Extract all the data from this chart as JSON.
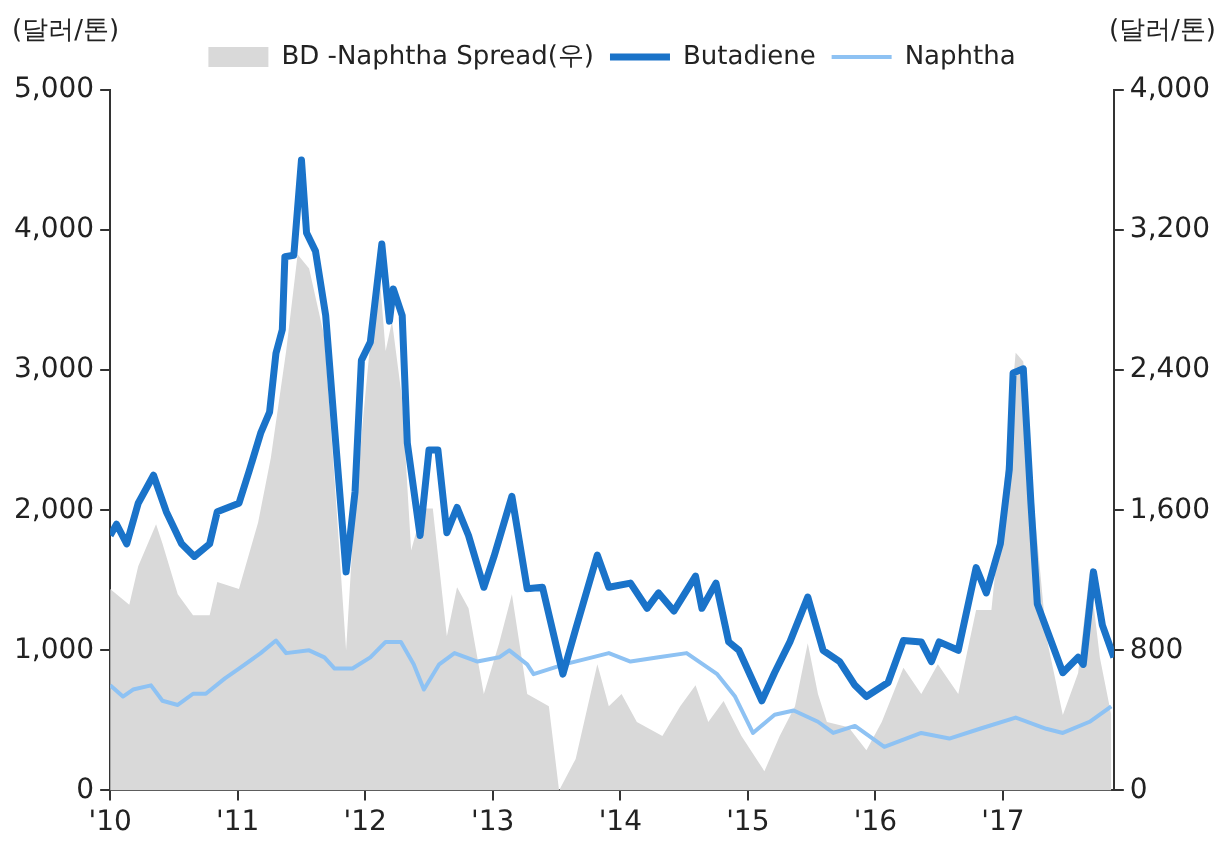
{
  "chart_data": {
    "type": "line",
    "ylabel": "(달러/톤)",
    "y2label": "(달러/톤)",
    "xlim": [
      2010,
      2017.87
    ],
    "xticks": [
      {
        "value": 2010,
        "label": "'10"
      },
      {
        "value": 2011,
        "label": "'11"
      },
      {
        "value": 2012,
        "label": "'12"
      },
      {
        "value": 2013,
        "label": "'13"
      },
      {
        "value": 2014,
        "label": "'14"
      },
      {
        "value": 2015,
        "label": "'15"
      },
      {
        "value": 2016,
        "label": "'16"
      },
      {
        "value": 2017,
        "label": "'17"
      }
    ],
    "ylim": [
      0,
      5000
    ],
    "yticks": [
      0,
      {
        "value": 1000,
        "label": "1,000"
      },
      {
        "value": 2000,
        "label": "2,000"
      },
      {
        "value": 3000,
        "label": "3,000"
      },
      {
        "value": 4000,
        "label": "4,000"
      },
      {
        "value": 5000,
        "label": "5,000"
      }
    ],
    "y2lim": [
      0,
      4000
    ],
    "y2ticks": [
      0,
      800,
      {
        "value": 1600,
        "label": "1,600"
      },
      {
        "value": 2400,
        "label": "2,400"
      },
      {
        "value": 3200,
        "label": "3,200"
      },
      {
        "value": 4000,
        "label": "4,000"
      }
    ],
    "grid": false,
    "legend": "top",
    "marker": "none",
    "series": [
      {
        "name": "BD -Naphtha Spread(우)",
        "type": "area",
        "axis": "y2",
        "color": "#d9d9d9",
        "x": [
          2010.0,
          2010.15,
          2010.22,
          2010.36,
          2010.41,
          2010.53,
          2010.65,
          2010.78,
          2010.84,
          2011.01,
          2011.16,
          2011.26,
          2011.38,
          2011.47,
          2011.56,
          2011.68,
          2011.76,
          2011.85,
          2011.9,
          2011.98,
          2012.04,
          2012.11,
          2012.16,
          2012.21,
          2012.29,
          2012.36,
          2012.45,
          2012.53,
          2012.64,
          2012.72,
          2012.81,
          2012.93,
          2013.05,
          2013.15,
          2013.27,
          2013.44,
          2013.52,
          2013.65,
          2013.82,
          2013.91,
          2014.01,
          2014.13,
          2014.33,
          2014.47,
          2014.59,
          2014.69,
          2014.81,
          2014.95,
          2015.13,
          2015.25,
          2015.37,
          2015.47,
          2015.55,
          2015.62,
          2015.79,
          2015.93,
          2016.05,
          2016.22,
          2016.36,
          2016.49,
          2016.65,
          2016.79,
          2016.91,
          2017.01,
          2017.1,
          2017.16,
          2017.25,
          2017.34,
          2017.47,
          2017.59,
          2017.68,
          2017.76,
          2017.85
        ],
        "values": [
          1150,
          1060,
          1280,
          1520,
          1410,
          1120,
          1000,
          1000,
          1190,
          1150,
          1530,
          1900,
          2510,
          3060,
          2980,
          2590,
          1770,
          800,
          1410,
          2100,
          2560,
          2960,
          2510,
          2680,
          2230,
          1370,
          1610,
          1610,
          880,
          1160,
          1040,
          550,
          840,
          1120,
          550,
          480,
          0,
          180,
          720,
          480,
          550,
          390,
          310,
          480,
          600,
          390,
          510,
          310,
          110,
          310,
          480,
          840,
          550,
          390,
          360,
          230,
          390,
          700,
          550,
          720,
          550,
          1030,
          1030,
          1740,
          2500,
          2450,
          1580,
          880,
          430,
          670,
          1250,
          760,
          430
        ]
      },
      {
        "name": "Butadiene",
        "type": "line",
        "color": "#1a73c9",
        "x": [
          2010.0,
          2010.05,
          2010.13,
          2010.22,
          2010.34,
          2010.44,
          2010.56,
          2010.66,
          2010.78,
          2010.84,
          2011.01,
          2011.09,
          2011.18,
          2011.25,
          2011.3,
          2011.35,
          2011.37,
          2011.44,
          2011.5,
          2011.54,
          2011.61,
          2011.69,
          2011.76,
          2011.85,
          2011.92,
          2011.97,
          2012.04,
          2012.13,
          2012.19,
          2012.22,
          2012.29,
          2012.33,
          2012.43,
          2012.5,
          2012.57,
          2012.64,
          2012.72,
          2012.81,
          2012.93,
          2013.01,
          2013.15,
          2013.27,
          2013.39,
          2013.55,
          2013.65,
          2013.82,
          2013.91,
          2014.08,
          2014.21,
          2014.3,
          2014.42,
          2014.59,
          2014.64,
          2014.75,
          2014.85,
          2014.93,
          2015.11,
          2015.21,
          2015.33,
          2015.47,
          2015.59,
          2015.72,
          2015.84,
          2015.93,
          2016.1,
          2016.22,
          2016.36,
          2016.44,
          2016.5,
          2016.65,
          2016.79,
          2016.87,
          2016.98,
          2017.05,
          2017.08,
          2017.16,
          2017.22,
          2017.27,
          2017.47,
          2017.59,
          2017.63,
          2017.71,
          2017.78,
          2017.87
        ],
        "values": [
          1820,
          1900,
          1760,
          2050,
          2250,
          1990,
          1760,
          1670,
          1760,
          1990,
          2050,
          2280,
          2550,
          2700,
          3120,
          3290,
          3810,
          3820,
          4500,
          3980,
          3850,
          3390,
          2580,
          1560,
          2130,
          3070,
          3200,
          3900,
          3350,
          3580,
          3390,
          2480,
          1820,
          2430,
          2430,
          1840,
          2020,
          1820,
          1450,
          1670,
          2100,
          1440,
          1450,
          830,
          1150,
          1680,
          1450,
          1480,
          1300,
          1410,
          1280,
          1530,
          1300,
          1480,
          1060,
          1000,
          640,
          840,
          1060,
          1380,
          1000,
          920,
          750,
          670,
          770,
          1070,
          1060,
          920,
          1060,
          1000,
          1590,
          1410,
          1760,
          2290,
          2980,
          3010,
          2050,
          1330,
          840,
          950,
          900,
          1560,
          1180,
          950
        ]
      },
      {
        "name": "Naphtha",
        "type": "line",
        "color": "#8ec2f3",
        "x": [
          2010.0,
          2010.1,
          2010.18,
          2010.32,
          2010.41,
          2010.53,
          2010.65,
          2010.75,
          2010.9,
          2011.01,
          2011.18,
          2011.3,
          2011.38,
          2011.56,
          2011.68,
          2011.76,
          2011.9,
          2012.04,
          2012.16,
          2012.28,
          2012.38,
          2012.46,
          2012.58,
          2012.7,
          2012.88,
          2013.05,
          2013.13,
          2013.27,
          2013.32,
          2013.56,
          2013.78,
          2013.91,
          2014.08,
          2014.3,
          2014.52,
          2014.76,
          2014.9,
          2015.04,
          2015.21,
          2015.36,
          2015.55,
          2015.67,
          2015.84,
          2016.07,
          2016.36,
          2016.58,
          2016.82,
          2017.1,
          2017.34,
          2017.47,
          2017.68,
          2017.85
        ],
        "values": [
          750,
          670,
          720,
          750,
          640,
          610,
          690,
          690,
          800,
          870,
          980,
          1070,
          980,
          1000,
          950,
          870,
          870,
          950,
          1060,
          1060,
          900,
          720,
          900,
          980,
          920,
          950,
          1000,
          900,
          830,
          900,
          950,
          980,
          920,
          950,
          980,
          830,
          670,
          410,
          540,
          570,
          490,
          410,
          460,
          310,
          410,
          370,
          440,
          520,
          440,
          410,
          490,
          600
        ]
      }
    ]
  }
}
